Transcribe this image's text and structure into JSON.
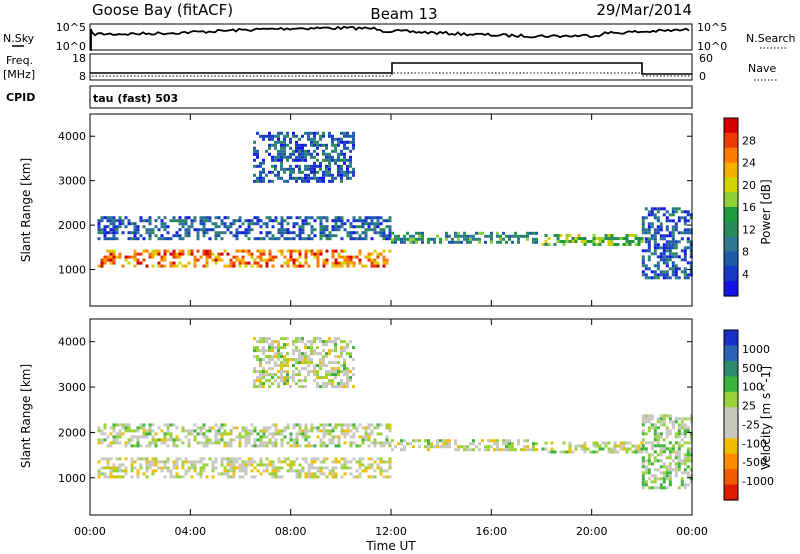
{
  "header": {
    "station": "Goose Bay (fitACF)",
    "beam": "Beam 13",
    "date": "29/Mar/2014"
  },
  "top_panels": {
    "nsky_label": "N.Sky",
    "nsky_ticks": [
      "10^5",
      "10^0"
    ],
    "nsearch_label": "N.Search",
    "nsearch_ticks": [
      "10^5",
      "10^0"
    ],
    "freq_label": "Freq.",
    "freq_unit": "[MHz]",
    "freq_ticks": [
      "18",
      "8"
    ],
    "nave_label": "Nave",
    "nave_ticks": [
      "60",
      "0"
    ],
    "cpid_label": "CPID",
    "cpid_text": "tau (fast) 503"
  },
  "chart_data": [
    {
      "type": "heatmap",
      "title": "",
      "xlabel": "Time UT",
      "ylabel": "Slant Range [km]",
      "xlim": [
        0,
        24
      ],
      "ylim": [
        180,
        4500
      ],
      "x_ticks": [
        "00:00",
        "04:00",
        "08:00",
        "12:00",
        "16:00",
        "20:00",
        "00:00"
      ],
      "y_ticks": [
        1000,
        2000,
        3000,
        4000
      ],
      "colorbar": {
        "label": "Power [dB]",
        "ticks": [
          "28",
          "24",
          "20",
          "16",
          "12",
          "8",
          "4"
        ],
        "colors": [
          "#d40000",
          "#ee3a00",
          "#ff7a00",
          "#f4b000",
          "#d2d200",
          "#8bd23a",
          "#1e9c3c",
          "#2a8a5a",
          "#2e7890",
          "#1e5aa8",
          "#1838c8",
          "#1414e6"
        ]
      },
      "bands": [
        {
          "t0": 0.3,
          "t1": 12,
          "r0": 1050,
          "r1": 1450,
          "value": 24
        },
        {
          "t0": 0.3,
          "t1": 12,
          "r0": 1700,
          "r1": 2200,
          "value": 8
        },
        {
          "t0": 6.5,
          "t1": 10.5,
          "r0": 3000,
          "r1": 4100,
          "value": 8
        },
        {
          "t0": 12,
          "t1": 17.8,
          "r0": 1600,
          "r1": 1850,
          "value": 12
        },
        {
          "t0": 18,
          "t1": 22,
          "r0": 1550,
          "r1": 1800,
          "value": 16
        },
        {
          "t0": 22,
          "t1": 24,
          "r0": 800,
          "r1": 2400,
          "value": 8
        }
      ]
    },
    {
      "type": "heatmap",
      "title": "",
      "xlabel": "Time UT",
      "ylabel": "Slant Range [km]",
      "xlim": [
        0,
        24
      ],
      "ylim": [
        180,
        4500
      ],
      "x_ticks": [
        "00:00",
        "04:00",
        "08:00",
        "12:00",
        "16:00",
        "20:00",
        "00:00"
      ],
      "y_ticks": [
        1000,
        2000,
        3000,
        4000
      ],
      "colorbar": {
        "label": "Velocity [m s^-1]",
        "ticks": [
          "1000",
          "500",
          "100",
          "25",
          "-25",
          "-100",
          "-500",
          "-1000"
        ],
        "colors": [
          "#1a2ec8",
          "#2a62b4",
          "#2e8a6e",
          "#3cb43c",
          "#9ad23c",
          "#c8c8c0",
          "#c8c8c0",
          "#f0c000",
          "#ff8c00",
          "#f05a00",
          "#e01a00"
        ]
      },
      "bands": [
        {
          "t0": 0.3,
          "t1": 12,
          "r0": 1050,
          "r1": 1450,
          "value": -100
        },
        {
          "t0": 0.3,
          "t1": 12,
          "r0": 1700,
          "r1": 2200,
          "value": 0
        },
        {
          "t0": 6.5,
          "t1": 10.5,
          "r0": 3000,
          "r1": 4100,
          "value": 0
        },
        {
          "t0": 12,
          "t1": 17.8,
          "r0": 1600,
          "r1": 1850,
          "value": 0
        },
        {
          "t0": 18,
          "t1": 22,
          "r0": 1550,
          "r1": 1800,
          "value": 0
        },
        {
          "t0": 22,
          "t1": 24,
          "r0": 800,
          "r1": 2400,
          "value": 100
        }
      ]
    }
  ]
}
